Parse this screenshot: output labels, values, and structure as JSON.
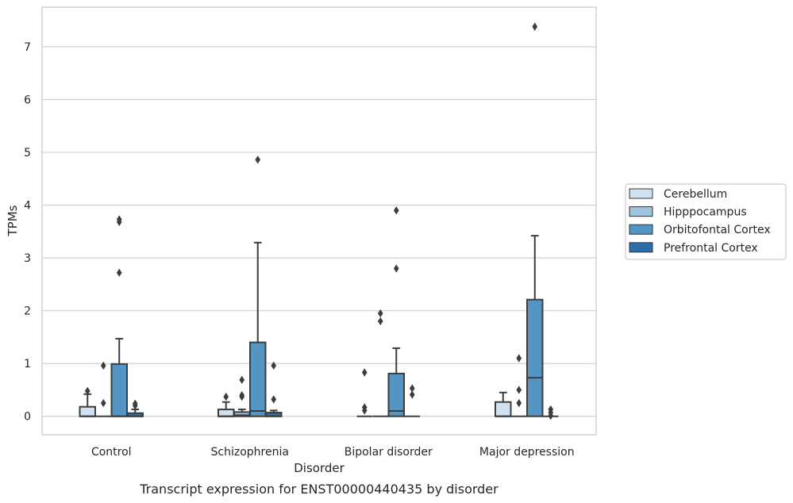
{
  "caption": "Transcript expression for ENST00000440435 by disorder",
  "chart_data": {
    "type": "box",
    "xlabel": "Disorder",
    "ylabel": "TPMs",
    "ylim": [
      -0.35,
      7.75
    ],
    "yticks": [
      0,
      1,
      2,
      3,
      4,
      5,
      6,
      7
    ],
    "grid": "horizontal",
    "legend_placement": "right",
    "categories": [
      "Control",
      "Schizophrenia",
      "Bipolar disorder",
      "Major depression"
    ],
    "series": [
      {
        "name": "Cerebellum",
        "color": "#d0e1f2",
        "boxes": [
          {
            "min": 0.0,
            "q1": 0.0,
            "median": 0.0,
            "q3": 0.18,
            "max": 0.42,
            "outliers": [
              0.48
            ]
          },
          {
            "min": 0.0,
            "q1": 0.0,
            "median": 0.0,
            "q3": 0.13,
            "max": 0.27,
            "outliers": [
              0.37
            ]
          },
          {
            "min": 0.0,
            "q1": 0.0,
            "median": 0.0,
            "q3": 0.0,
            "max": 0.0,
            "outliers": [
              0.83,
              0.17,
              0.11
            ]
          },
          {
            "min": 0.0,
            "q1": 0.0,
            "median": 0.0,
            "q3": 0.27,
            "max": 0.45,
            "outliers": []
          }
        ]
      },
      {
        "name": "Hipppocampus",
        "color": "#9cc5e0",
        "boxes": [
          {
            "min": 0.0,
            "q1": 0.0,
            "median": 0.0,
            "q3": 0.0,
            "max": 0.0,
            "outliers": [
              0.96,
              0.25
            ]
          },
          {
            "min": 0.0,
            "q1": 0.0,
            "median": 0.02,
            "q3": 0.08,
            "max": 0.13,
            "outliers": [
              0.69,
              0.4,
              0.37
            ]
          },
          {
            "min": 0.0,
            "q1": 0.0,
            "median": 0.0,
            "q3": 0.0,
            "max": 0.0,
            "outliers": [
              1.95,
              1.8
            ]
          },
          {
            "min": 0.0,
            "q1": 0.0,
            "median": 0.0,
            "q3": 0.0,
            "max": 0.0,
            "outliers": [
              1.1,
              0.5,
              0.25
            ]
          }
        ]
      },
      {
        "name": "Orbitofontal Cortex",
        "color": "#5495c3",
        "boxes": [
          {
            "min": 0.0,
            "q1": 0.0,
            "median": 0.0,
            "q3": 0.99,
            "max": 1.47,
            "outliers": [
              3.73,
              3.68,
              2.72
            ]
          },
          {
            "min": 0.0,
            "q1": 0.0,
            "median": 0.1,
            "q3": 1.4,
            "max": 3.29,
            "outliers": [
              4.86
            ]
          },
          {
            "min": 0.0,
            "q1": 0.0,
            "median": 0.1,
            "q3": 0.81,
            "max": 1.29,
            "outliers": [
              3.9,
              2.8
            ]
          },
          {
            "min": 0.0,
            "q1": 0.0,
            "median": 0.73,
            "q3": 2.21,
            "max": 3.42,
            "outliers": [
              7.38
            ]
          }
        ]
      },
      {
        "name": "Prefrontal Cortex",
        "color": "#2d6ea8",
        "boxes": [
          {
            "min": 0.0,
            "q1": 0.0,
            "median": 0.0,
            "q3": 0.06,
            "max": 0.13,
            "outliers": [
              0.24,
              0.2
            ]
          },
          {
            "min": 0.0,
            "q1": 0.0,
            "median": 0.0,
            "q3": 0.07,
            "max": 0.11,
            "outliers": [
              0.96,
              0.32
            ]
          },
          {
            "min": 0.0,
            "q1": 0.0,
            "median": 0.0,
            "q3": 0.0,
            "max": 0.0,
            "outliers": [
              0.53,
              0.41
            ]
          },
          {
            "min": 0.0,
            "q1": 0.0,
            "median": 0.0,
            "q3": 0.0,
            "max": 0.0,
            "outliers": [
              0.13,
              0.07,
              0.01
            ]
          }
        ]
      }
    ]
  }
}
